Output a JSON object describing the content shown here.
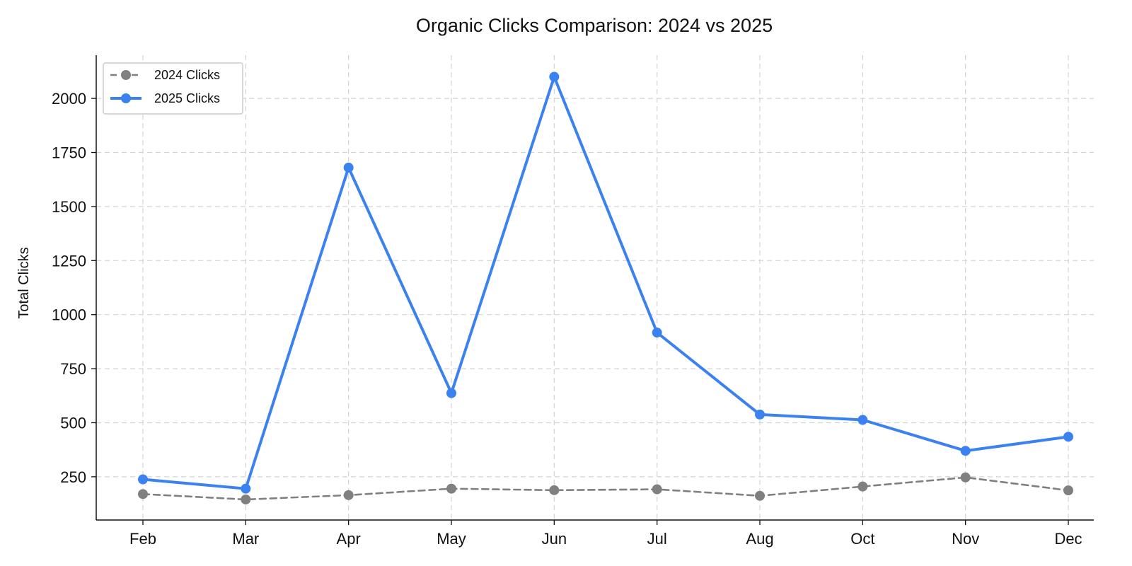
{
  "chart_data": {
    "type": "line",
    "title": "Organic Clicks Comparison: 2024 vs 2025",
    "xlabel": "",
    "ylabel": "Total Clicks",
    "categories": [
      "Feb",
      "Mar",
      "Apr",
      "May",
      "Jun",
      "Jul",
      "Aug",
      "Oct",
      "Nov",
      "Dec"
    ],
    "yticks": [
      250,
      500,
      750,
      1000,
      1250,
      1500,
      1750,
      2000
    ],
    "ylim": [
      50,
      2200
    ],
    "grid": true,
    "legend_position": "top-left",
    "series": [
      {
        "name": "2024 Clicks",
        "color": "#808080",
        "line_style": "dashed",
        "values": [
          170,
          145,
          165,
          195,
          188,
          192,
          162,
          205,
          247,
          187
        ]
      },
      {
        "name": "2025 Clicks",
        "color": "#3b82f0",
        "line_style": "solid",
        "values": [
          238,
          195,
          1680,
          637,
          2100,
          917,
          538,
          513,
          370,
          435
        ]
      }
    ]
  }
}
